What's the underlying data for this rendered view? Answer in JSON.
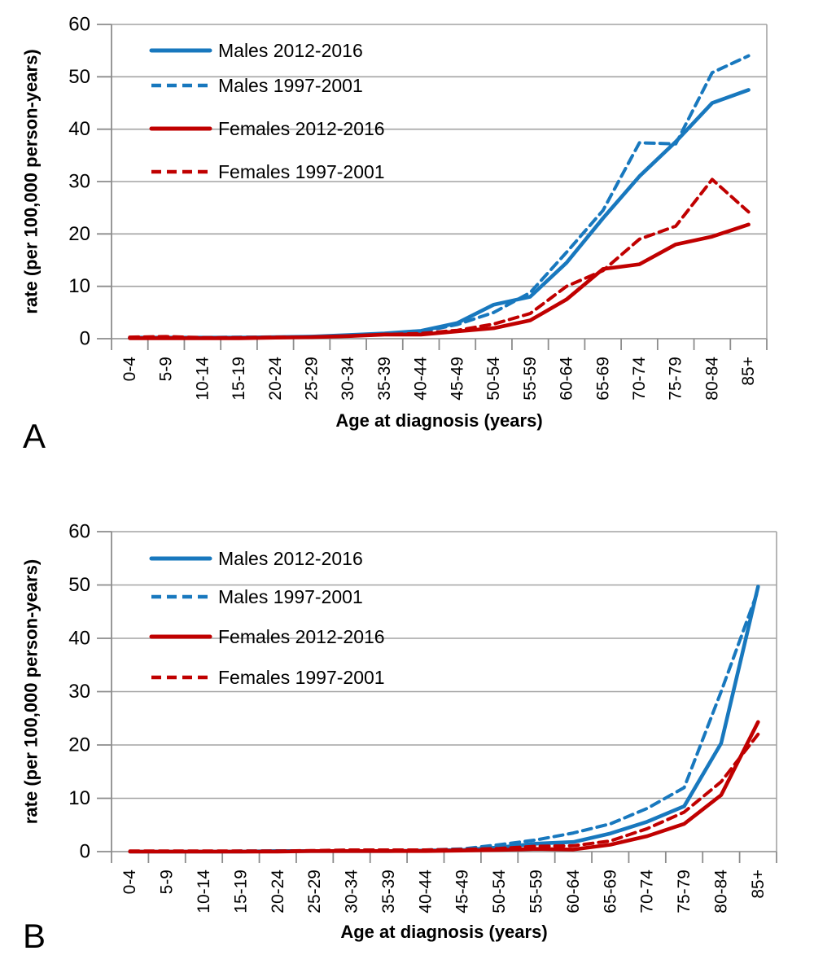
{
  "figure": {
    "panel_letters": {
      "a": "A",
      "b": "B"
    },
    "colors": {
      "male_blue": "#1878be",
      "female_red": "#c00000",
      "gridline": "#a3a3a3",
      "axis": "#8c8c8c",
      "text": "#000000"
    }
  },
  "chart_data": [
    {
      "type": "line",
      "panel": "A",
      "title": "",
      "xlabel": "Age at diagnosis (years)",
      "ylabel": "rate (per 100,000 person-years)",
      "ylim": [
        0,
        60
      ],
      "ytick_step": 10,
      "grid": true,
      "legend_position": "top-left-inside",
      "categories": [
        "0-4",
        "5-9",
        "10-14",
        "15-19",
        "20-24",
        "25-29",
        "30-34",
        "35-39",
        "40-44",
        "45-49",
        "50-54",
        "55-59",
        "60-64",
        "65-69",
        "70-74",
        "75-79",
        "80-84",
        "85+"
      ],
      "series": [
        {
          "name": "Males 2012-2016",
          "color": "#1878be",
          "dashed": false,
          "values": [
            0.2,
            0.2,
            0.2,
            0.2,
            0.3,
            0.4,
            0.7,
            1.0,
            1.5,
            3.0,
            6.5,
            8.0,
            14.5,
            23.0,
            31.0,
            37.6,
            45.0,
            47.5
          ]
        },
        {
          "name": "Males 1997-2001",
          "color": "#1878be",
          "dashed": true,
          "values": [
            0.2,
            0.3,
            0.2,
            0.3,
            0.3,
            0.4,
            0.6,
            0.9,
            1.3,
            2.7,
            5.0,
            8.8,
            16.5,
            24.5,
            37.4,
            37.2,
            50.8,
            54.0
          ]
        },
        {
          "name": "Females 2012-2016",
          "color": "#c00000",
          "dashed": false,
          "values": [
            0.1,
            0.1,
            0.1,
            0.1,
            0.2,
            0.3,
            0.5,
            0.8,
            0.8,
            1.4,
            2.0,
            3.5,
            7.5,
            13.3,
            14.2,
            18.0,
            19.5,
            21.8
          ]
        },
        {
          "name": "Females 1997-2001",
          "color": "#c00000",
          "dashed": true,
          "values": [
            0.3,
            0.4,
            0.2,
            0.2,
            0.3,
            0.3,
            0.5,
            0.8,
            1.0,
            1.6,
            2.8,
            4.8,
            10.0,
            13.0,
            19.0,
            21.5,
            30.4,
            24.2
          ]
        }
      ]
    },
    {
      "type": "line",
      "panel": "B",
      "title": "",
      "xlabel": "Age at diagnosis (years)",
      "ylabel": "rate (per 100,000 person-years)",
      "ylim": [
        0,
        60
      ],
      "ytick_step": 10,
      "grid": true,
      "legend_position": "top-left-inside",
      "categories": [
        "0-4",
        "5-9",
        "10-14",
        "15-19",
        "20-24",
        "25-29",
        "30-34",
        "35-39",
        "40-44",
        "45-49",
        "50-54",
        "55-59",
        "60-64",
        "65-69",
        "70-74",
        "75-79",
        "80-84",
        "85+"
      ],
      "series": [
        {
          "name": "Males 2012-2016",
          "color": "#1878be",
          "dashed": false,
          "values": [
            0.0,
            0.0,
            0.0,
            0.0,
            0.1,
            0.1,
            0.1,
            0.1,
            0.2,
            0.3,
            0.8,
            1.5,
            1.8,
            3.4,
            5.6,
            8.5,
            20.3,
            49.7
          ]
        },
        {
          "name": "Males 1997-2001",
          "color": "#1878be",
          "dashed": true,
          "values": [
            0.0,
            0.0,
            0.0,
            0.1,
            0.1,
            0.1,
            0.2,
            0.2,
            0.3,
            0.5,
            1.3,
            2.2,
            3.5,
            5.2,
            8.1,
            12.0,
            30.0,
            49.0
          ]
        },
        {
          "name": "Females 2012-2016",
          "color": "#c00000",
          "dashed": false,
          "values": [
            0.0,
            0.0,
            0.0,
            0.0,
            0.0,
            0.1,
            0.1,
            0.1,
            0.1,
            0.2,
            0.3,
            0.5,
            0.4,
            1.3,
            2.9,
            5.2,
            10.6,
            24.3
          ]
        },
        {
          "name": "Females 1997-2001",
          "color": "#c00000",
          "dashed": true,
          "values": [
            0.1,
            0.1,
            0.1,
            0.1,
            0.1,
            0.2,
            0.3,
            0.3,
            0.3,
            0.4,
            0.6,
            1.0,
            1.1,
            2.0,
            4.3,
            7.4,
            13.1,
            22.0
          ]
        }
      ]
    }
  ]
}
